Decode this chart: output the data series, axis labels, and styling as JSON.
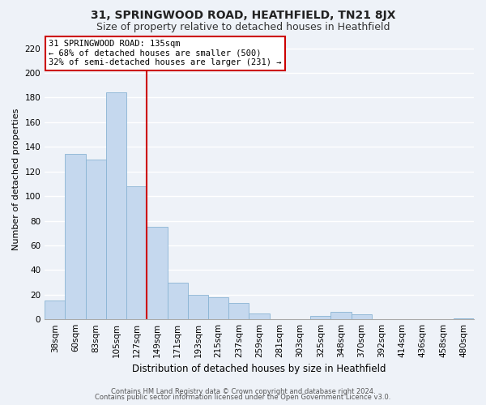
{
  "title": "31, SPRINGWOOD ROAD, HEATHFIELD, TN21 8JX",
  "subtitle": "Size of property relative to detached houses in Heathfield",
  "xlabel": "Distribution of detached houses by size in Heathfield",
  "ylabel": "Number of detached properties",
  "bar_labels": [
    "38sqm",
    "60sqm",
    "83sqm",
    "105sqm",
    "127sqm",
    "149sqm",
    "171sqm",
    "193sqm",
    "215sqm",
    "237sqm",
    "259sqm",
    "281sqm",
    "303sqm",
    "325sqm",
    "348sqm",
    "370sqm",
    "392sqm",
    "414sqm",
    "436sqm",
    "458sqm",
    "480sqm"
  ],
  "bar_values": [
    15,
    134,
    130,
    184,
    108,
    75,
    30,
    20,
    18,
    13,
    5,
    0,
    0,
    3,
    6,
    4,
    0,
    0,
    0,
    0,
    1
  ],
  "bar_color": "#c5d8ee",
  "bar_edge_color": "#8ab4d4",
  "vline_index": 4,
  "vline_color": "#cc0000",
  "ylim": [
    0,
    228
  ],
  "yticks": [
    0,
    20,
    40,
    60,
    80,
    100,
    120,
    140,
    160,
    180,
    200,
    220
  ],
  "annotation_title": "31 SPRINGWOOD ROAD: 135sqm",
  "annotation_line1": "← 68% of detached houses are smaller (500)",
  "annotation_line2": "32% of semi-detached houses are larger (231) →",
  "annotation_box_color": "#ffffff",
  "annotation_box_edge": "#cc0000",
  "footer1": "Contains HM Land Registry data © Crown copyright and database right 2024.",
  "footer2": "Contains public sector information licensed under the Open Government Licence v3.0.",
  "background_color": "#eef2f8",
  "grid_color": "#ffffff",
  "title_fontsize": 10,
  "subtitle_fontsize": 9,
  "ylabel_fontsize": 8,
  "xlabel_fontsize": 8.5,
  "tick_fontsize": 7.5,
  "annotation_fontsize": 7.5,
  "footer_fontsize": 6
}
